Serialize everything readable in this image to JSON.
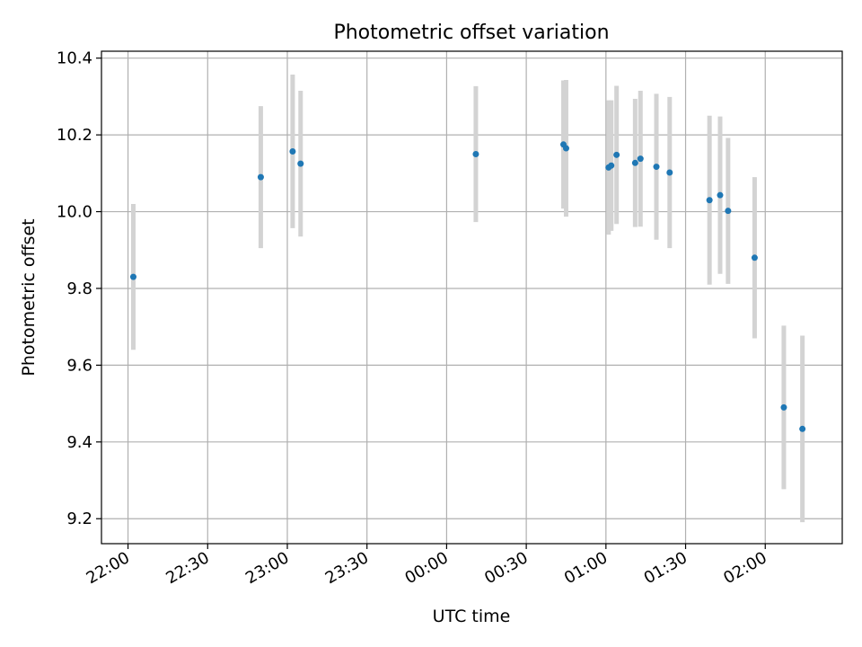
{
  "chart_data": {
    "type": "scatter",
    "title": "Photometric offset variation",
    "xlabel": "UTC time",
    "ylabel": "Photometric offset",
    "x_is_time": true,
    "xlim": [
      "21:50",
      "02:29"
    ],
    "ylim": [
      9.135,
      10.418
    ],
    "grid": true,
    "x_ticks": [
      "22:00",
      "22:30",
      "23:00",
      "23:30",
      "00:00",
      "00:30",
      "01:00",
      "01:30",
      "02:00"
    ],
    "y_ticks": [
      9.2,
      9.4,
      9.6,
      9.8,
      10.0,
      10.2,
      10.4
    ],
    "y_tick_labels": [
      "9.2",
      "9.4",
      "9.6",
      "9.8",
      "10.0",
      "10.2",
      "10.4"
    ],
    "colors": {
      "point": "#1f77b4",
      "errorbar": "#d3d3d3",
      "grid": "#b0b0b0"
    },
    "points": [
      {
        "t": "22:02",
        "y": 9.83,
        "err": 0.19
      },
      {
        "t": "22:50",
        "y": 10.09,
        "err": 0.185
      },
      {
        "t": "23:02",
        "y": 10.157,
        "err": 0.2
      },
      {
        "t": "23:05",
        "y": 10.125,
        "err": 0.19
      },
      {
        "t": "00:11",
        "y": 10.15,
        "err": 0.177
      },
      {
        "t": "00:44",
        "y": 10.175,
        "err": 0.167
      },
      {
        "t": "00:45",
        "y": 10.165,
        "err": 0.178
      },
      {
        "t": "01:01",
        "y": 10.115,
        "err": 0.175
      },
      {
        "t": "01:02",
        "y": 10.12,
        "err": 0.17
      },
      {
        "t": "01:04",
        "y": 10.148,
        "err": 0.18
      },
      {
        "t": "01:11",
        "y": 10.127,
        "err": 0.167
      },
      {
        "t": "01:13",
        "y": 10.138,
        "err": 0.177
      },
      {
        "t": "01:19",
        "y": 10.117,
        "err": 0.19
      },
      {
        "t": "01:24",
        "y": 10.102,
        "err": 0.197
      },
      {
        "t": "01:39",
        "y": 10.03,
        "err": 0.22
      },
      {
        "t": "01:43",
        "y": 10.043,
        "err": 0.205
      },
      {
        "t": "01:46",
        "y": 10.002,
        "err": 0.19
      },
      {
        "t": "01:56",
        "y": 9.88,
        "err": 0.21
      },
      {
        "t": "02:07",
        "y": 9.49,
        "err": 0.213
      },
      {
        "t": "02:14",
        "y": 9.434,
        "err": 0.243
      }
    ]
  }
}
